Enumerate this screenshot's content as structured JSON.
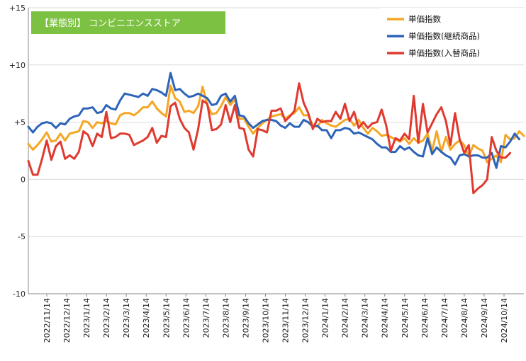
{
  "chart_data": {
    "type": "line",
    "title": "【業態別】 コンビニエンスストア",
    "title_bg": "#7dc143",
    "xlabel": "",
    "ylabel": "",
    "ylim": [
      -10,
      15
    ],
    "y_ticks": [
      {
        "value": 15,
        "label": "+15"
      },
      {
        "value": 10,
        "label": "+10"
      },
      {
        "value": 5,
        "label": "+5"
      },
      {
        "value": 0,
        "label": "0"
      },
      {
        "value": -5,
        "label": "-5"
      },
      {
        "value": -10,
        "label": "-10"
      }
    ],
    "x_tick_labels": [
      "2022/11/14",
      "2022/12/14",
      "2023/1/14",
      "2023/2/14",
      "2023/3/14",
      "2023/4/14",
      "2023/5/14",
      "2023/6/14",
      "2023/7/14",
      "2023/8/14",
      "2023/9/14",
      "2023/10/14",
      "2023/11/14",
      "2023/12/14",
      "2024/1/14",
      "2024/2/14",
      "2024/3/14",
      "2024/4/14",
      "2024/5/14",
      "2024/6/14",
      "2024/7/14",
      "2024/8/14",
      "2024/9/14",
      "2024/10/14"
    ],
    "grid": true,
    "legend_position": "top-right",
    "series": [
      {
        "name": "単価指数",
        "color": "#f5a623",
        "values": [
          3.1,
          2.6,
          3.0,
          3.5,
          4.1,
          3.3,
          3.4,
          4.0,
          3.4,
          4.0,
          4.1,
          4.2,
          5.1,
          5.0,
          4.5,
          5.0,
          4.9,
          5.1,
          4.9,
          4.8,
          5.6,
          5.8,
          5.8,
          5.6,
          5.9,
          6.3,
          6.3,
          6.8,
          6.2,
          5.8,
          5.5,
          8.2,
          7.1,
          6.8,
          5.9,
          6.0,
          5.8,
          6.4,
          8.1,
          6.5,
          5.7,
          5.8,
          6.4,
          7.2,
          6.5,
          7.0,
          5.3,
          5.3,
          4.6,
          4.0,
          4.5,
          4.9,
          5.2,
          5.5,
          5.6,
          5.7,
          5.3,
          5.6,
          5.8,
          6.3,
          5.6,
          5.6,
          4.7,
          4.6,
          5.2,
          4.9,
          4.7,
          4.6,
          4.9,
          5.2,
          5.3,
          4.7,
          5.2,
          4.5,
          4.0,
          4.5,
          4.2,
          3.8,
          3.9,
          3.7,
          3.5,
          3.3,
          3.6,
          3.1,
          3.6,
          3.2,
          3.4,
          4.0,
          2.5,
          4.2,
          2.4,
          3.7,
          2.6,
          3.1,
          3.4,
          3.0,
          2.0,
          3.0,
          2.7,
          2.5,
          1.5,
          1.8,
          2.1,
          1.5,
          3.9,
          3.5,
          3.6,
          4.2,
          3.8
        ]
      },
      {
        "name": "単価指数(継続商品)",
        "color": "#2e64b8",
        "values": [
          4.6,
          4.1,
          4.6,
          4.9,
          5.0,
          4.9,
          4.5,
          4.9,
          4.8,
          5.3,
          5.5,
          5.6,
          6.2,
          6.2,
          6.3,
          5.8,
          5.9,
          6.5,
          6.2,
          6.1,
          6.9,
          7.5,
          7.4,
          7.3,
          7.2,
          7.5,
          7.3,
          7.9,
          7.8,
          7.6,
          7.3,
          9.3,
          7.8,
          7.9,
          7.5,
          7.2,
          7.3,
          7.5,
          7.3,
          7.1,
          6.5,
          6.6,
          7.3,
          7.5,
          6.8,
          7.3,
          5.6,
          5.5,
          4.9,
          4.5,
          4.8,
          5.1,
          5.2,
          5.2,
          5.1,
          4.7,
          4.5,
          4.9,
          4.6,
          4.6,
          5.2,
          5.0,
          4.6,
          4.7,
          4.3,
          4.3,
          3.6,
          4.3,
          4.3,
          4.5,
          4.4,
          4.0,
          4.1,
          3.9,
          3.7,
          3.5,
          3.1,
          2.8,
          2.8,
          2.4,
          2.4,
          2.9,
          2.6,
          2.8,
          2.4,
          2.1,
          2.0,
          3.6,
          2.2,
          2.8,
          2.4,
          2.1,
          1.9,
          1.3,
          2.1,
          2.2,
          2.0,
          2.1,
          2.1,
          1.9,
          1.9,
          2.3,
          1.0,
          2.9,
          2.8,
          3.3,
          4.0,
          3.5
        ]
      },
      {
        "name": "単価指数(入替商品)",
        "color": "#e03a30",
        "values": [
          1.6,
          0.4,
          0.4,
          1.8,
          3.4,
          1.7,
          2.9,
          3.3,
          1.8,
          2.1,
          1.8,
          2.4,
          4.2,
          3.9,
          2.9,
          4.0,
          3.7,
          5.9,
          3.6,
          3.7,
          4.0,
          4.0,
          3.9,
          3.0,
          3.2,
          3.4,
          3.7,
          4.5,
          3.2,
          3.8,
          3.7,
          6.4,
          6.7,
          5.3,
          4.5,
          4.1,
          2.6,
          4.4,
          6.9,
          6.6,
          4.3,
          4.4,
          4.8,
          6.5,
          5.0,
          6.5,
          4.5,
          4.4,
          2.6,
          2.0,
          4.4,
          4.3,
          4.1,
          6.0,
          6.0,
          6.2,
          5.1,
          5.5,
          6.0,
          8.4,
          6.7,
          5.8,
          4.4,
          5.3,
          5.0,
          5.1,
          5.1,
          5.9,
          5.3,
          6.6,
          5.1,
          5.9,
          4.5,
          5.0,
          4.5,
          4.9,
          5.0,
          6.1,
          4.7,
          2.5,
          3.6,
          3.4,
          4.0,
          3.5,
          7.3,
          3.2,
          6.6,
          4.1,
          4.9,
          5.7,
          6.3,
          5.1,
          3.0,
          5.8,
          3.5,
          2.3,
          3.0,
          -1.2,
          -0.8,
          -0.5,
          0.0,
          3.7,
          2.5,
          1.9,
          1.9,
          2.3
        ]
      }
    ]
  }
}
